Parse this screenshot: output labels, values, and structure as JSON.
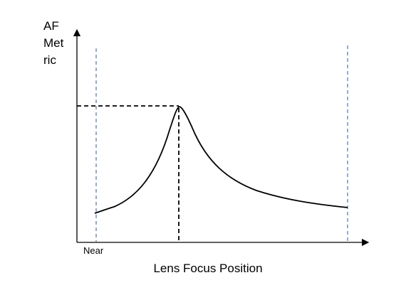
{
  "diagram": {
    "y_axis_label_lines": [
      "AF",
      "Met",
      "ric"
    ],
    "x_axis_label": "Lens Focus Position",
    "near_label": "Near",
    "colors": {
      "axis": "#000000",
      "curve": "#000000",
      "peak_guides": "#000000",
      "range_guides": "#5b7fae",
      "text": "#000000"
    }
  }
}
